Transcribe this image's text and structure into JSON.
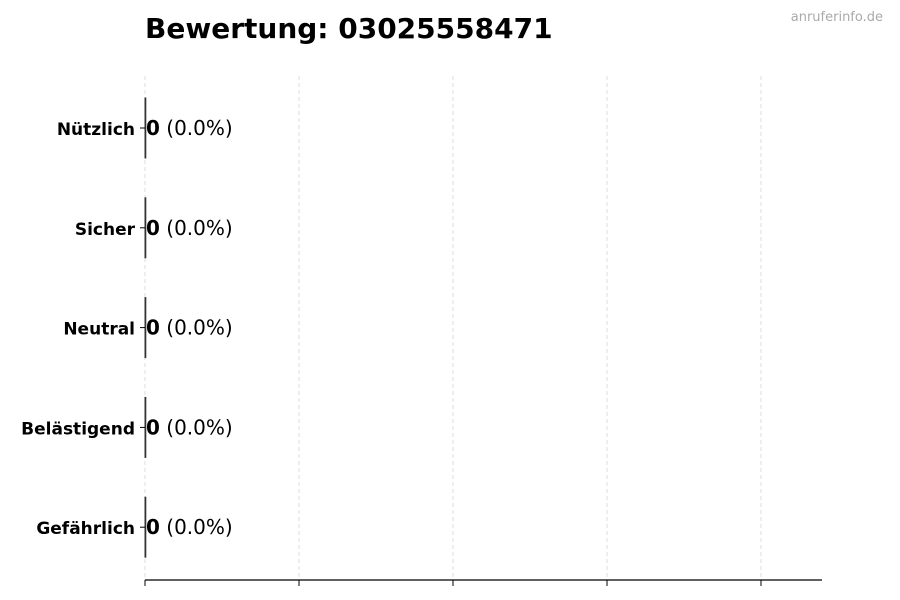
{
  "watermark": "anruferinfo.de",
  "chart_data": {
    "type": "bar",
    "orientation": "horizontal",
    "title": "Bewertung: 03025558471",
    "xlabel": "",
    "ylabel": "",
    "categories": [
      "Nützlich",
      "Sicher",
      "Neutral",
      "Belästigend",
      "Gefährlich"
    ],
    "values": [
      0,
      0,
      0,
      0,
      0
    ],
    "data_labels": [
      {
        "count": "0",
        "percent": "(0.0%)"
      },
      {
        "count": "0",
        "percent": "(0.0%)"
      },
      {
        "count": "0",
        "percent": "(0.0%)"
      },
      {
        "count": "0",
        "percent": "(0.0%)"
      },
      {
        "count": "0",
        "percent": "(0.0%)"
      }
    ],
    "grid": "x, dashed",
    "x_tick_labels_shown": false,
    "bar_edge_color": "#333333",
    "grid_color": "#dddddd"
  }
}
